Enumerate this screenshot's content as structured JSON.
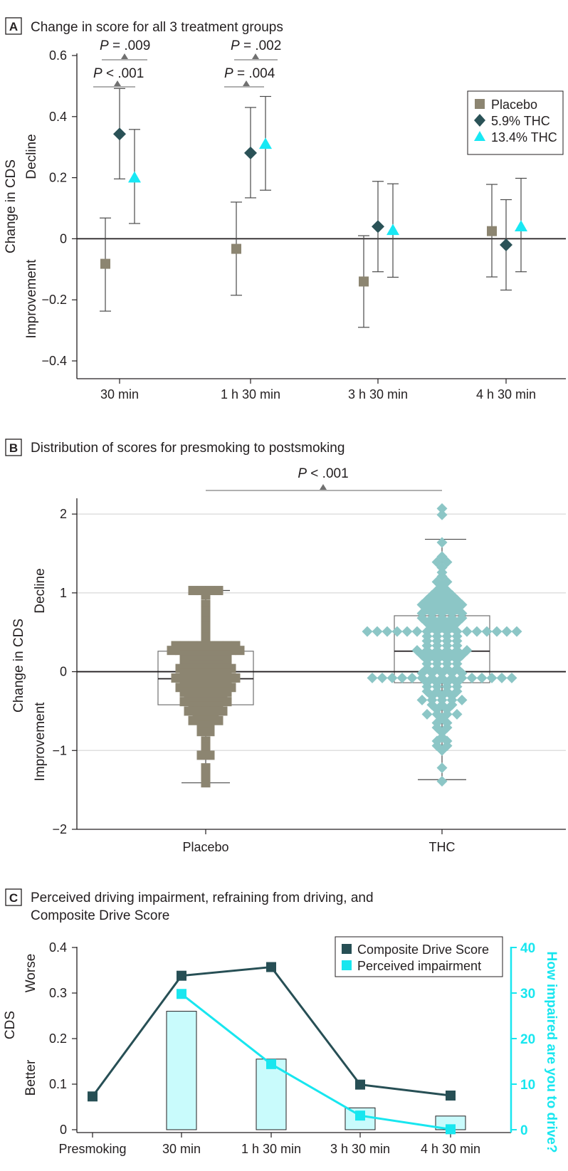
{
  "colors": {
    "placebo": "#8c8571",
    "thc59": "#2a5257",
    "thc134": "#18e8f4",
    "boxTeal": "#8cc6c6",
    "cdsLine": "#274f55",
    "perceived": "#18e6ef",
    "barFill": "#c9fbfc",
    "axis": "#231f20",
    "grid": "#d9d9d9",
    "errorBar": "#4a4a4a",
    "pMarker": "#707070"
  },
  "panels": {
    "a": {
      "letter": "A",
      "title": "Change in score for all 3 treatment groups",
      "ylabel": "Change in CDS",
      "yside_top": "Decline",
      "yside_bottom": "Improvement",
      "legend": [
        "Placebo",
        "5.9% THC",
        "13.4% THC"
      ],
      "pvalues": [
        {
          "italic": "P",
          "rest": " = .009"
        },
        {
          "italic": "P",
          "rest": " < .001"
        },
        {
          "italic": "P",
          "rest": " = .002"
        },
        {
          "italic": "P",
          "rest": " = .004"
        }
      ]
    },
    "b": {
      "letter": "B",
      "title": "Distribution of scores for presmoking to postsmoking",
      "ylabel": "Change in CDS",
      "yside_top": "Decline",
      "yside_bottom": "Improvement",
      "pvalue": {
        "italic": "P",
        "rest": " < .001"
      }
    },
    "c": {
      "letter": "C",
      "title_line1": "Perceived driving impairment, refraining from driving, and",
      "title_line2": "Composite Drive Score",
      "ylabel": "CDS",
      "yside_top": "Worse",
      "yside_bottom": "Better",
      "y2label": "How impaired are you to drive?",
      "legend": [
        "Composite Drive Score",
        "Perceived impairment"
      ]
    }
  },
  "chart_data": [
    {
      "panel": "A",
      "type": "scatter",
      "title": "Change in score for all 3 treatment groups",
      "ylabel": "Change in CDS",
      "ylim": [
        -0.4,
        0.6
      ],
      "yticks": [
        -0.4,
        -0.2,
        0,
        0.2,
        0.4,
        0.6
      ],
      "ytick_labels": [
        "−0.4",
        "−0.2",
        "0",
        "0.2",
        "0.4",
        "0.6"
      ],
      "categories": [
        "30 min",
        "1 h 30 min",
        "3 h 30 min",
        "4 h 30 min"
      ],
      "legend_position": "top-right",
      "series": [
        {
          "name": "Placebo",
          "marker": "square",
          "values": [
            -0.082,
            -0.033,
            -0.14,
            0.025
          ],
          "lower": [
            -0.237,
            -0.185,
            -0.29,
            -0.125
          ],
          "upper": [
            0.068,
            0.12,
            0.01,
            0.178
          ]
        },
        {
          "name": "5.9% THC",
          "marker": "diamond",
          "values": [
            0.343,
            0.281,
            0.04,
            -0.02
          ],
          "lower": [
            0.196,
            0.134,
            -0.108,
            -0.168
          ],
          "upper": [
            0.492,
            0.43,
            0.188,
            0.128
          ]
        },
        {
          "name": "13.4% THC",
          "marker": "triangle",
          "values": [
            0.2,
            0.31,
            0.028,
            0.04
          ],
          "lower": [
            0.05,
            0.159,
            -0.126,
            -0.108
          ],
          "upper": [
            0.358,
            0.466,
            0.18,
            0.198
          ]
        }
      ],
      "annotations": [
        {
          "text": "P = .009",
          "category": "30 min",
          "compare": [
            "Placebo",
            "13.4% THC"
          ]
        },
        {
          "text": "P < .001",
          "category": "30 min",
          "compare": [
            "Placebo",
            "5.9% THC"
          ]
        },
        {
          "text": "P = .002",
          "category": "1 h 30 min",
          "compare": [
            "Placebo",
            "13.4% THC"
          ]
        },
        {
          "text": "P = .004",
          "category": "1 h 30 min",
          "compare": [
            "Placebo",
            "5.9% THC"
          ]
        }
      ]
    },
    {
      "panel": "B",
      "type": "box",
      "title": "Distribution of scores for presmoking to postsmoking",
      "ylabel": "Change in CDS",
      "ylim": [
        -2,
        2.2
      ],
      "yticks": [
        -2,
        -1,
        0,
        1,
        2
      ],
      "ytick_labels": [
        "−2",
        "−1",
        "0",
        "1",
        "2"
      ],
      "categories": [
        "Placebo",
        "THC"
      ],
      "grid": true,
      "boxes": [
        {
          "name": "Placebo",
          "q1": -0.42,
          "median": -0.09,
          "q3": 0.26,
          "whisker_low": -1.41,
          "whisker_high": 1.03
        },
        {
          "name": "THC",
          "q1": -0.14,
          "median": 0.26,
          "q3": 0.71,
          "whisker_low": -1.37,
          "whisker_high": 1.68
        }
      ],
      "points": [
        {
          "name": "Placebo",
          "marker": "square",
          "values": [
            1.03,
            1.03,
            1.03,
            1.03,
            0.97,
            0.85,
            0.76,
            0.65,
            0.57,
            0.52,
            0.44,
            0.38,
            0.33,
            0.33,
            0.33,
            0.33,
            0.33,
            0.33,
            0.33,
            0.33,
            0.27,
            0.27,
            0.27,
            0.27,
            0.27,
            0.27,
            0.27,
            0.27,
            0.27,
            0.21,
            0.21,
            0.21,
            0.21,
            0.21,
            0.21,
            0.15,
            0.15,
            0.15,
            0.15,
            0.15,
            0.15,
            0.09,
            0.09,
            0.09,
            0.09,
            0.04,
            0.04,
            0.04,
            0.04,
            0.04,
            0.04,
            0.04,
            -0.02,
            -0.02,
            -0.02,
            -0.02,
            -0.02,
            -0.02,
            -0.08,
            -0.08,
            -0.08,
            -0.08,
            -0.08,
            -0.08,
            -0.08,
            -0.08,
            -0.14,
            -0.14,
            -0.14,
            -0.14,
            -0.14,
            -0.14,
            -0.2,
            -0.2,
            -0.2,
            -0.2,
            -0.2,
            -0.2,
            -0.2,
            -0.26,
            -0.26,
            -0.26,
            -0.26,
            -0.26,
            -0.26,
            -0.32,
            -0.32,
            -0.32,
            -0.32,
            -0.32,
            -0.38,
            -0.38,
            -0.38,
            -0.38,
            -0.38,
            -0.38,
            -0.44,
            -0.44,
            -0.44,
            -0.44,
            -0.5,
            -0.5,
            -0.5,
            -0.5,
            -0.5,
            -0.56,
            -0.56,
            -0.56,
            -0.62,
            -0.62,
            -0.62,
            -0.62,
            -0.68,
            -0.68,
            -0.76,
            -0.76,
            -0.88,
            -0.96,
            -1.06,
            -1.06,
            -1.22,
            -1.33,
            -1.41
          ]
        },
        {
          "name": "THC",
          "marker": "diamond",
          "values": [
            2.07,
            1.99,
            1.64,
            1.46,
            1.39,
            1.39,
            1.32,
            1.26,
            1.21,
            1.14,
            1.14,
            1.09,
            1.03,
            1.03,
            0.97,
            0.97,
            0.97,
            0.91,
            0.91,
            0.91,
            0.91,
            0.85,
            0.85,
            0.85,
            0.85,
            0.85,
            0.79,
            0.79,
            0.79,
            0.79,
            0.74,
            0.74,
            0.74,
            0.74,
            0.74,
            0.68,
            0.68,
            0.68,
            0.68,
            0.68,
            0.62,
            0.62,
            0.62,
            0.62,
            0.56,
            0.56,
            0.56,
            0.51,
            0.51,
            0.51,
            0.51,
            0.51,
            0.51,
            0.51,
            0.51,
            0.51,
            0.51,
            0.51,
            0.51,
            0.51,
            0.51,
            0.51,
            0.51,
            0.45,
            0.45,
            0.45,
            0.45,
            0.39,
            0.39,
            0.39,
            0.39,
            0.33,
            0.33,
            0.33,
            0.33,
            0.27,
            0.27,
            0.27,
            0.27,
            0.27,
            0.27,
            0.21,
            0.21,
            0.21,
            0.21,
            0.21,
            0.15,
            0.15,
            0.15,
            0.15,
            0.1,
            0.1,
            0.1,
            0.1,
            0.04,
            0.04,
            0.04,
            0.04,
            -0.02,
            -0.02,
            -0.02,
            -0.02,
            -0.02,
            -0.08,
            -0.08,
            -0.08,
            -0.08,
            -0.08,
            -0.08,
            -0.08,
            -0.08,
            -0.08,
            -0.08,
            -0.08,
            -0.08,
            -0.08,
            -0.08,
            -0.08,
            -0.14,
            -0.14,
            -0.14,
            -0.14,
            -0.19,
            -0.19,
            -0.19,
            -0.19,
            -0.25,
            -0.25,
            -0.25,
            -0.25,
            -0.31,
            -0.31,
            -0.31,
            -0.36,
            -0.36,
            -0.36,
            -0.36,
            -0.36,
            -0.42,
            -0.42,
            -0.42,
            -0.48,
            -0.48,
            -0.54,
            -0.54,
            -0.54,
            -0.54,
            -0.59,
            -0.65,
            -0.65,
            -0.71,
            -0.71,
            -0.77,
            -0.83,
            -0.88,
            -0.88,
            -0.94,
            -0.94,
            -1.0,
            -1.22,
            -1.39
          ]
        }
      ],
      "annotations": [
        {
          "text": "P < .001",
          "compare": [
            "Placebo",
            "THC"
          ]
        }
      ]
    },
    {
      "panel": "C",
      "type": "line",
      "title": "Perceived driving impairment, refraining from driving, and Composite Drive Score",
      "ylabel": "CDS",
      "y2label": "How impaired are you to drive?",
      "ylim": [
        0,
        0.4
      ],
      "yticks": [
        0,
        0.1,
        0.2,
        0.3,
        0.4
      ],
      "ytick_labels": [
        "0",
        "0.1",
        "0.2",
        "0.3",
        "0.4"
      ],
      "y2lim": [
        0,
        40
      ],
      "y2ticks": [
        0,
        10,
        20,
        30,
        40
      ],
      "categories": [
        "Presmoking",
        "30 min",
        "1 h 30 min",
        "3 h 30 min",
        "4 h 30 min"
      ],
      "legend_position": "top-right",
      "series": [
        {
          "name": "Composite Drive Score",
          "axis": "left",
          "values": [
            0.073,
            0.338,
            0.357,
            0.099,
            0.075
          ]
        },
        {
          "name": "Perceived impairment",
          "axis": "right",
          "values": [
            null,
            29.8,
            14.4,
            3.1,
            0.1
          ]
        }
      ],
      "bars": {
        "axis": "left",
        "values": [
          null,
          0.26,
          0.155,
          0.048,
          0.03
        ]
      }
    }
  ]
}
